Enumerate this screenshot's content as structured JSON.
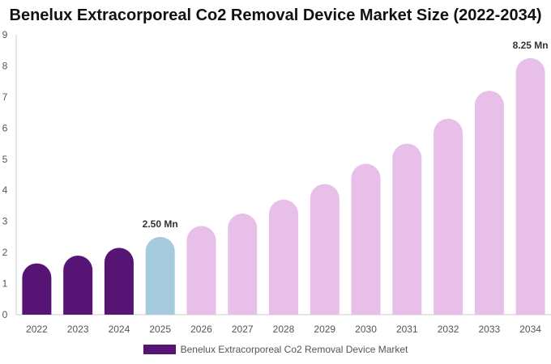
{
  "chart_data": {
    "type": "bar",
    "title": "Benelux Extracorporeal Co2 Removal Device Market Size (2022-2034)",
    "xlabel": "",
    "ylabel": "",
    "ylim": [
      0,
      9
    ],
    "yticks": [
      "0",
      "1",
      "2",
      "3",
      "4",
      "5",
      "6",
      "7",
      "8",
      "9"
    ],
    "grid": false,
    "legend_placement": "bottom",
    "categories": [
      "2022",
      "2023",
      "2024",
      "2025",
      "2026",
      "2027",
      "2028",
      "2029",
      "2030",
      "2031",
      "2032",
      "2033",
      "2034"
    ],
    "series": [
      {
        "name": "Benelux Extracorporeal Co2 Removal Device Market",
        "values": [
          1.65,
          1.9,
          2.15,
          2.5,
          2.85,
          3.25,
          3.7,
          4.2,
          4.85,
          5.5,
          6.3,
          7.2,
          8.25
        ],
        "color": "#561574"
      }
    ],
    "colors": {
      "historical": "#561574",
      "base_year": "#a6cbdf",
      "forecast": "#e8bfe8",
      "axis": "#cccccc",
      "tick_text": "#555555",
      "label_text": "#333333"
    },
    "annotations": [
      {
        "category": "2025",
        "text": "2.50 Mn"
      },
      {
        "category": "2034",
        "text": "8.25 Mn"
      }
    ]
  }
}
